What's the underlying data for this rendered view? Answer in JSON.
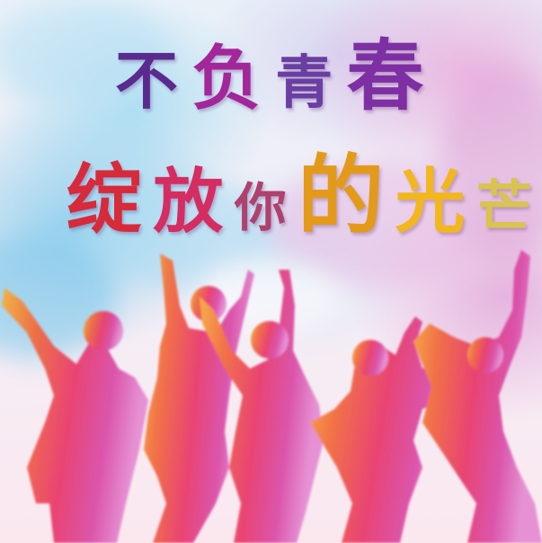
{
  "title": {
    "line1": [
      "不",
      "负",
      "青",
      "春"
    ],
    "line2": [
      "绽",
      "放",
      "你",
      "的",
      "光",
      "芒"
    ]
  },
  "colors": {
    "line1": [
      "#5a2a8f",
      "#a3269b",
      "#6b3ea3",
      "#7d2fa3"
    ],
    "line2": [
      "#d72a3a",
      "#d52c62",
      "#b0406d",
      "#e39a1a",
      "#f2b61f",
      "#d9c44f"
    ],
    "silhouette_gradient": [
      "#f7b23a",
      "#f26a3a",
      "#e8386a",
      "#d94aa6",
      "#e58bd2"
    ]
  }
}
